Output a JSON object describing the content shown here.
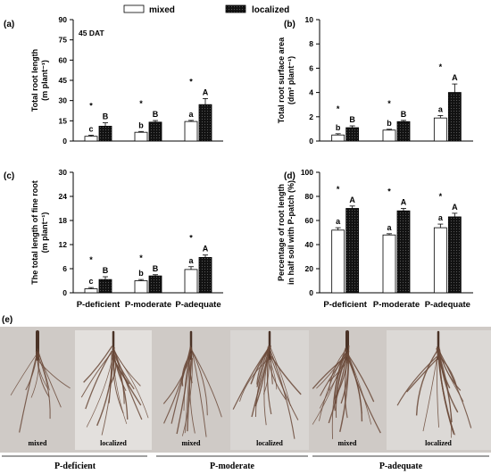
{
  "legend": {
    "mixed": "mixed",
    "localized": "localized",
    "placement": "top"
  },
  "colors": {
    "mixed_fill": "#ffffff",
    "localized_fill": "#111111",
    "photo_bg": "#cfcac6",
    "root": "#6b4a3a"
  },
  "chart_data": [
    {
      "panel": "(a)",
      "type": "bar",
      "annotation": "45 DAT",
      "ylabel": "Total root length",
      "yunit": "(m plant⁻¹)",
      "ylim": [
        0,
        90
      ],
      "yticks": [
        0,
        15,
        30,
        45,
        60,
        75,
        90
      ],
      "categories": [
        "P-deficient",
        "P-moderate",
        "P-adequate"
      ],
      "series": [
        {
          "name": "mixed",
          "values": [
            3.5,
            6.5,
            14.5
          ],
          "errors": [
            0.8,
            0.6,
            0.8
          ],
          "letters": [
            "c",
            "b",
            "a"
          ]
        },
        {
          "name": "localized",
          "values": [
            11.0,
            14.0,
            27.0
          ],
          "errors": [
            2.5,
            1.2,
            4.5
          ],
          "letters": [
            "B",
            "B",
            "A"
          ]
        }
      ],
      "stars": [
        "*",
        "*",
        "*"
      ],
      "show_xticklabels": false
    },
    {
      "panel": "(b)",
      "type": "bar",
      "ylabel": "Total root surface area",
      "yunit": "(dm² plant⁻¹)",
      "ylim": [
        0,
        10
      ],
      "yticks": [
        0,
        2,
        4,
        6,
        8,
        10
      ],
      "categories": [
        "P-deficient",
        "P-moderate",
        "P-adequate"
      ],
      "series": [
        {
          "name": "mixed",
          "values": [
            0.5,
            0.9,
            1.9
          ],
          "errors": [
            0.1,
            0.07,
            0.2
          ],
          "letters": [
            "b",
            "b",
            "a"
          ]
        },
        {
          "name": "localized",
          "values": [
            1.1,
            1.6,
            4.0
          ],
          "errors": [
            0.15,
            0.1,
            0.7
          ],
          "letters": [
            "B",
            "B",
            "A"
          ]
        }
      ],
      "stars": [
        "*",
        "*",
        "*"
      ],
      "show_xticklabels": false
    },
    {
      "panel": "(c)",
      "type": "bar",
      "ylabel": "The total length of fine root",
      "yunit": "(m plant⁻¹)",
      "ylim": [
        0,
        30
      ],
      "yticks": [
        0,
        6,
        12,
        18,
        24,
        30
      ],
      "categories": [
        "P-deficient",
        "P-moderate",
        "P-adequate"
      ],
      "series": [
        {
          "name": "mixed",
          "values": [
            1.0,
            3.0,
            5.8
          ],
          "errors": [
            0.3,
            0.3,
            0.7
          ],
          "letters": [
            "c",
            "b",
            "a"
          ]
        },
        {
          "name": "localized",
          "values": [
            3.3,
            4.2,
            8.8
          ],
          "errors": [
            0.7,
            0.3,
            0.6
          ],
          "letters": [
            "B",
            "B",
            "A"
          ]
        }
      ],
      "stars": [
        "*",
        "*",
        "*"
      ],
      "show_xticklabels": true
    },
    {
      "panel": "(d)",
      "type": "bar",
      "ylabel": "Percentage of root length",
      "ylabel2": "in half soil with P-patch (%)",
      "ylim": [
        0,
        100
      ],
      "yticks": [
        0,
        20,
        40,
        60,
        80,
        100
      ],
      "categories": [
        "P-deficient",
        "P-moderate",
        "P-adequate"
      ],
      "series": [
        {
          "name": "mixed",
          "values": [
            52,
            48,
            54
          ],
          "errors": [
            2,
            1,
            3
          ],
          "letters": [
            "a",
            "a",
            "a"
          ]
        },
        {
          "name": "localized",
          "values": [
            70,
            68,
            63
          ],
          "errors": [
            2,
            2,
            3
          ],
          "letters": [
            "A",
            "A",
            "A"
          ]
        }
      ],
      "stars": [
        "*",
        "*",
        "*"
      ],
      "show_xticklabels": true
    }
  ],
  "photo": {
    "panel": "(e)",
    "labels": [
      "mixed",
      "localized",
      "mixed",
      "localized",
      "mixed",
      "localized"
    ],
    "groups": [
      "P-deficient",
      "P-moderate",
      "P-adequate"
    ]
  }
}
